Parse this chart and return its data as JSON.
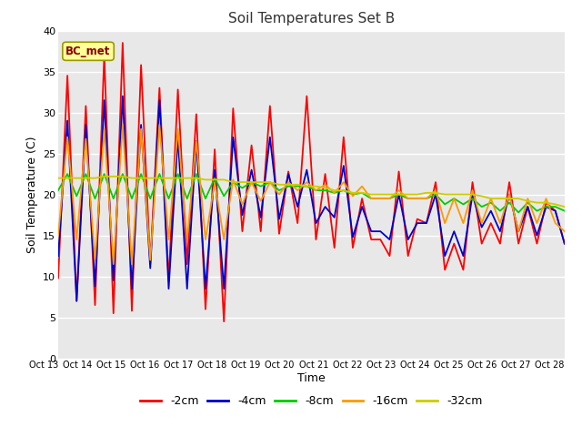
{
  "title": "Soil Temperatures Set B",
  "xlabel": "Time",
  "ylabel": "Soil Temperature (C)",
  "ylim": [
    0,
    40
  ],
  "fig_bg_color": "#ffffff",
  "plot_bg_color": "#e8e8e8",
  "annotation_text": "BC_met",
  "annotation_fg": "#8B0000",
  "annotation_bg": "#ffff99",
  "annotation_border": "#999900",
  "x_tick_labels": [
    "Oct 13",
    "Oct 14",
    "Oct 15",
    "Oct 16",
    "Oct 17",
    "Oct 18",
    "Oct 19",
    "Oct 20",
    "Oct 21",
    "Oct 22",
    "Oct 23",
    "Oct 24",
    "Oct 25",
    "Oct 26",
    "Oct 27",
    "Oct 28"
  ],
  "legend_labels": [
    "-2cm",
    "-4cm",
    "-8cm",
    "-16cm",
    "-32cm"
  ],
  "legend_colors": [
    "#ff0000",
    "#0000cc",
    "#00cc00",
    "#ff9900",
    "#cccc00"
  ],
  "series_cm2": [
    9.8,
    34.5,
    7.0,
    30.8,
    6.5,
    37.0,
    5.5,
    38.5,
    5.8,
    35.8,
    11.5,
    33.0,
    9.5,
    32.8,
    11.5,
    29.8,
    6.0,
    25.5,
    4.5,
    30.5,
    15.5,
    26.0,
    15.5,
    30.8,
    15.2,
    22.8,
    16.5,
    32.0,
    14.5,
    22.5,
    13.5,
    27.0,
    13.5,
    19.5,
    14.5,
    14.5,
    12.5,
    22.8,
    12.5,
    17.0,
    16.5,
    21.5,
    10.8,
    14.0,
    10.8,
    21.5,
    14.0,
    16.5,
    14.0,
    21.5,
    14.0,
    18.5,
    14.0,
    19.0,
    18.0,
    14.0
  ],
  "series_cm4": [
    12.5,
    29.0,
    7.0,
    28.5,
    8.8,
    31.5,
    9.5,
    32.0,
    8.5,
    28.5,
    11.0,
    31.5,
    8.5,
    27.0,
    8.5,
    26.5,
    8.5,
    23.0,
    8.5,
    27.0,
    17.5,
    23.0,
    17.2,
    27.0,
    17.0,
    22.5,
    18.5,
    23.0,
    16.5,
    18.5,
    17.2,
    23.5,
    14.8,
    18.5,
    15.5,
    15.5,
    14.5,
    20.0,
    14.5,
    16.5,
    16.5,
    20.0,
    12.5,
    15.5,
    12.5,
    20.0,
    16.0,
    18.0,
    15.5,
    20.0,
    15.5,
    18.5,
    15.0,
    18.5,
    18.0,
    14.0
  ],
  "series_cm8": [
    20.5,
    22.5,
    19.8,
    22.5,
    19.5,
    22.5,
    19.5,
    22.5,
    19.5,
    22.5,
    19.5,
    22.5,
    19.5,
    22.5,
    19.5,
    22.5,
    19.5,
    22.0,
    19.8,
    21.5,
    20.8,
    21.5,
    21.0,
    21.5,
    20.5,
    21.0,
    21.0,
    21.0,
    20.5,
    20.5,
    20.2,
    20.5,
    20.0,
    20.2,
    19.5,
    19.5,
    19.5,
    20.0,
    19.5,
    19.5,
    19.5,
    20.0,
    18.8,
    19.5,
    18.8,
    19.5,
    18.5,
    19.0,
    18.0,
    19.0,
    17.8,
    19.0,
    18.0,
    18.5,
    18.5,
    18.0
  ],
  "series_cm16": [
    15.0,
    27.0,
    14.5,
    26.8,
    12.0,
    28.0,
    11.5,
    28.5,
    11.5,
    28.0,
    12.0,
    28.5,
    14.5,
    28.0,
    14.5,
    26.5,
    14.5,
    21.5,
    14.5,
    21.8,
    18.8,
    21.5,
    19.2,
    21.5,
    20.0,
    21.5,
    20.5,
    21.5,
    20.5,
    21.2,
    20.2,
    21.5,
    19.8,
    21.0,
    19.5,
    19.5,
    19.5,
    20.5,
    19.5,
    19.5,
    19.5,
    20.5,
    16.5,
    19.5,
    16.5,
    20.5,
    16.5,
    19.5,
    16.5,
    20.0,
    15.5,
    19.5,
    16.5,
    19.5,
    16.5,
    15.5
  ],
  "series_cm32": [
    22.0,
    22.0,
    22.0,
    22.0,
    22.0,
    22.2,
    22.2,
    22.2,
    22.0,
    22.0,
    22.0,
    22.0,
    22.0,
    22.0,
    22.0,
    22.0,
    21.8,
    21.8,
    21.8,
    21.5,
    21.5,
    21.5,
    21.5,
    21.5,
    21.2,
    21.2,
    21.2,
    21.0,
    21.0,
    20.8,
    20.5,
    20.5,
    20.2,
    20.2,
    20.0,
    20.0,
    20.0,
    20.0,
    20.0,
    20.0,
    20.2,
    20.2,
    20.0,
    20.0,
    20.0,
    20.0,
    19.8,
    19.5,
    19.5,
    19.5,
    19.5,
    19.2,
    19.0,
    19.0,
    18.8,
    18.5
  ]
}
